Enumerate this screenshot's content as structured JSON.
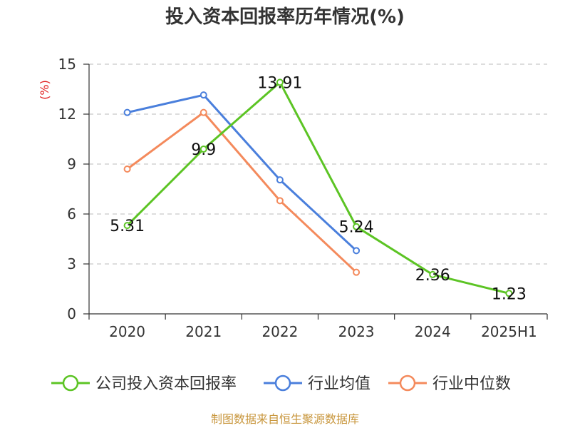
{
  "chart_data": {
    "type": "line",
    "title": "投入资本回报率历年情况(%)",
    "unit_label": "(%)",
    "categories": [
      "2020",
      "2021",
      "2022",
      "2023",
      "2024",
      "2025H1"
    ],
    "ylim": [
      0,
      15
    ],
    "yticks": [
      0,
      3,
      6,
      9,
      12,
      15
    ],
    "grid": true,
    "legend_position": "bottom",
    "series": [
      {
        "name": "公司投入资本回报率",
        "values": [
          5.31,
          9.9,
          13.91,
          5.24,
          2.36,
          1.23
        ],
        "labels": [
          "5.31",
          "9.9",
          "13.91",
          "5.24",
          "2.36",
          "1.23"
        ],
        "color": "#5cc424"
      },
      {
        "name": "行业均值",
        "values": [
          12.1,
          13.15,
          8.05,
          3.8,
          null,
          null
        ],
        "color": "#4a7fdc"
      },
      {
        "name": "行业中位数",
        "values": [
          8.7,
          12.1,
          6.8,
          2.5,
          null,
          null
        ],
        "color": "#f48a5c"
      }
    ]
  },
  "source": "制图数据来自恒生聚源数据库"
}
